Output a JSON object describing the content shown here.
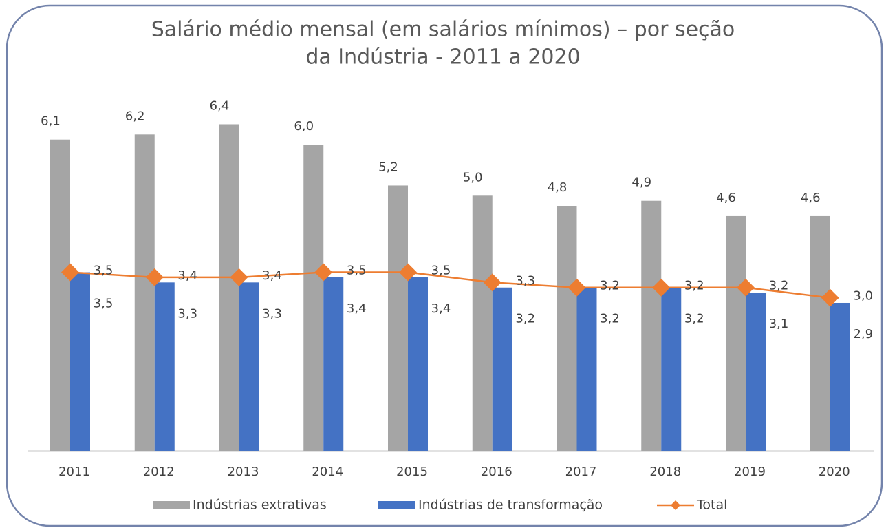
{
  "chart_data": {
    "type": "bar-line",
    "title": [
      "Salário médio mensal (em salários mínimos) – por seção",
      "da Indústria - 2011 a 2020"
    ],
    "categories": [
      "2011",
      "2012",
      "2013",
      "2014",
      "2015",
      "2016",
      "2017",
      "2018",
      "2019",
      "2020"
    ],
    "series": [
      {
        "name": "Indústrias extrativas",
        "type": "bar",
        "color": "#a5a5a5",
        "values": [
          6.1,
          6.2,
          6.4,
          6.0,
          5.2,
          5.0,
          4.8,
          4.9,
          4.6,
          4.6
        ],
        "value_labels": [
          "6,1",
          "6,2",
          "6,4",
          "6,0",
          "5,2",
          "5,0",
          "4,8",
          "4,9",
          "4,6",
          "4,6"
        ]
      },
      {
        "name": "Indústrias de transformação",
        "type": "bar",
        "color": "#4472c4",
        "values": [
          3.5,
          3.3,
          3.3,
          3.4,
          3.4,
          3.2,
          3.2,
          3.2,
          3.1,
          2.9
        ],
        "value_labels": [
          "3,5",
          "3,3",
          "3,3",
          "3,4",
          "3,4",
          "3,2",
          "3,2",
          "3,2",
          "3,1",
          "2,9"
        ]
      },
      {
        "name": "Total",
        "type": "line",
        "color": "#ed7d31",
        "values": [
          3.5,
          3.4,
          3.4,
          3.5,
          3.5,
          3.3,
          3.2,
          3.2,
          3.2,
          3.0
        ],
        "value_labels": [
          "3,5",
          "3,4",
          "3,4",
          "3,5",
          "3,5",
          "3,3",
          "3,2",
          "3,2",
          "3,2",
          "3,0"
        ]
      }
    ],
    "ylim": [
      0,
      7
    ],
    "legend": "bottom"
  }
}
